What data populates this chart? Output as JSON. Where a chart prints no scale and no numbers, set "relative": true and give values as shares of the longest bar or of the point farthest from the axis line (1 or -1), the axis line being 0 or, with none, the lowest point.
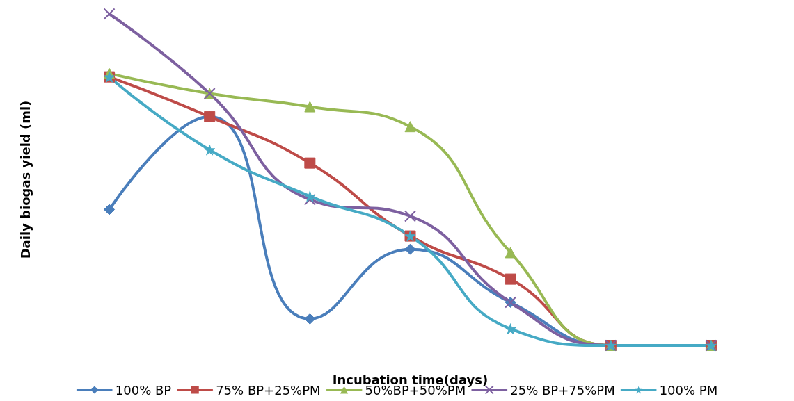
{
  "chart_data": {
    "type": "line",
    "xlabel": "Incubation time(days)",
    "ylabel": "Daily biogas yield (ml)",
    "relative": true,
    "categories": [
      null,
      null,
      null,
      null,
      null,
      null,
      null
    ],
    "series": [
      {
        "name": "100% BP",
        "color": "#4a7ebb",
        "marker": "diamond",
        "values": [
          0.41,
          0.69,
          0.08,
          0.29,
          0.13,
          0,
          0
        ]
      },
      {
        "name": "75% BP+25%PM",
        "color": "#be4b48",
        "marker": "square",
        "values": [
          0.81,
          0.69,
          0.55,
          0.33,
          0.2,
          0,
          0
        ]
      },
      {
        "name": "50%BP+50%PM",
        "color": "#98b954",
        "marker": "triangle",
        "values": [
          0.82,
          0.76,
          0.72,
          0.66,
          0.28,
          0,
          0
        ]
      },
      {
        "name": "25% BP+75%PM",
        "color": "#7d60a0",
        "marker": "cross",
        "values": [
          1,
          0.76,
          0.44,
          0.39,
          0.13,
          0,
          0
        ]
      },
      {
        "name": "100% PM",
        "color": "#46aac5",
        "marker": "star",
        "values": [
          0.81,
          0.59,
          0.45,
          0.33,
          0.05,
          0,
          0
        ]
      }
    ],
    "grid": false,
    "legend": "bottom",
    "line_style": "solid"
  }
}
